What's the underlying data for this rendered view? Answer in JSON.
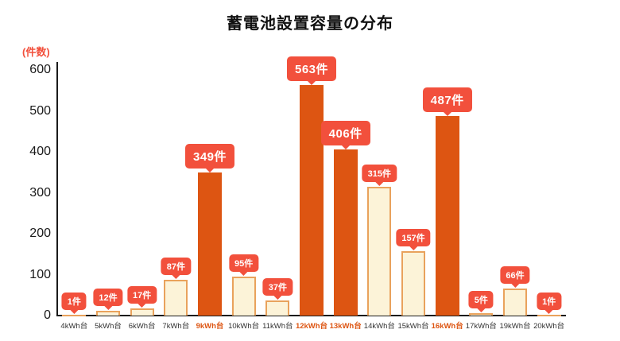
{
  "title": "蓄電池設置容量の分布",
  "y_axis": {
    "unit_label": "(件数)",
    "ticks": [
      600,
      500,
      400,
      300,
      200,
      100,
      0
    ]
  },
  "chart_data": {
    "type": "bar",
    "title": "蓄電池設置容量の分布",
    "xlabel": "",
    "ylabel": "(件数)",
    "ylim": [
      0,
      600
    ],
    "grid": false,
    "legend": false,
    "categories": [
      "4kWh台",
      "5kWh台",
      "6kWh台",
      "7kWh台",
      "9kWh台",
      "10kWh台",
      "11kWh台",
      "12kWh台",
      "13kWh台",
      "14kWh台",
      "15kWh台",
      "16kWh台",
      "17kWh台",
      "19kWh台",
      "20kWh台"
    ],
    "values": [
      1,
      12,
      17,
      87,
      349,
      95,
      37,
      563,
      406,
      315,
      157,
      487,
      5,
      66,
      1
    ],
    "data_labels": [
      "1件",
      "12件",
      "17件",
      "87件",
      "349件",
      "95件",
      "37件",
      "563件",
      "406件",
      "315件",
      "157件",
      "487件",
      "5件",
      "66件",
      "1件"
    ],
    "highlight_indices": [
      4,
      7,
      8,
      11
    ],
    "highlighted_categories": [
      "9kWh台",
      "12kWh台",
      "13kWh台",
      "16kWh台"
    ],
    "colors": {
      "bar_highlight": "#DD5512",
      "bar_normal_fill": "#FCF3D8",
      "bar_normal_border": "#E9A25C",
      "badge": "#F2503C",
      "badge_text": "#FFFFFF",
      "axis": "#1A1A1A",
      "tick_text": "#1A1A1A",
      "x_label": "#333333",
      "x_label_highlight": "#DD5512",
      "unit_label": "#F2503C"
    }
  }
}
